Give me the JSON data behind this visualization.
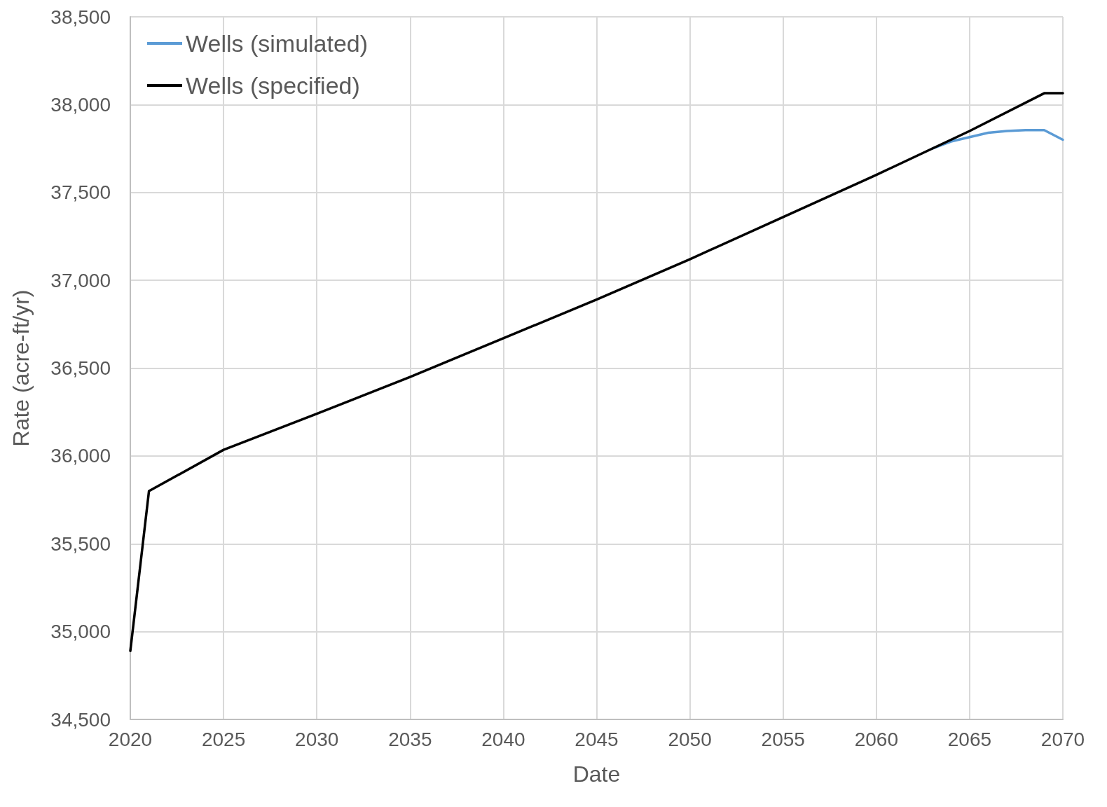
{
  "chart_data": {
    "type": "line",
    "xlabel": "Date",
    "ylabel": "Rate (acre-ft/yr)",
    "xlim": [
      2020,
      2070
    ],
    "xticks": [
      2020,
      2025,
      2030,
      2035,
      2040,
      2045,
      2050,
      2055,
      2060,
      2065,
      2070
    ],
    "ylim": [
      34500,
      38500
    ],
    "yticks": [
      {
        "value": 34500,
        "label": "34,500"
      },
      {
        "value": 35000,
        "label": "35,000"
      },
      {
        "value": 35500,
        "label": "35,500"
      },
      {
        "value": 36000,
        "label": "36,000"
      },
      {
        "value": 36500,
        "label": "36,500"
      },
      {
        "value": 37000,
        "label": "37,000"
      },
      {
        "value": 37500,
        "label": "37,500"
      },
      {
        "value": 38000,
        "label": "38,000"
      },
      {
        "value": 38500,
        "label": "38,500"
      }
    ],
    "grid": true,
    "legend": "top left",
    "marker": "none",
    "line_style": "solid",
    "series": [
      {
        "name": "Wells (simulated)",
        "color": "#5b9bd5",
        "x": [
          2063,
          2064,
          2065,
          2066,
          2067,
          2068,
          2069,
          2070
        ],
        "values": [
          37750,
          37790,
          37815,
          37840,
          37850,
          37855,
          37855,
          37800
        ]
      },
      {
        "name": "Wells (specified)",
        "color": "#000000",
        "x": [
          2020,
          2021,
          2025,
          2030,
          2035,
          2040,
          2045,
          2050,
          2055,
          2060,
          2065,
          2069,
          2070
        ],
        "values": [
          34890,
          35800,
          36035,
          36240,
          36450,
          36670,
          36890,
          37120,
          37360,
          37600,
          37850,
          38065,
          38065
        ]
      }
    ]
  }
}
